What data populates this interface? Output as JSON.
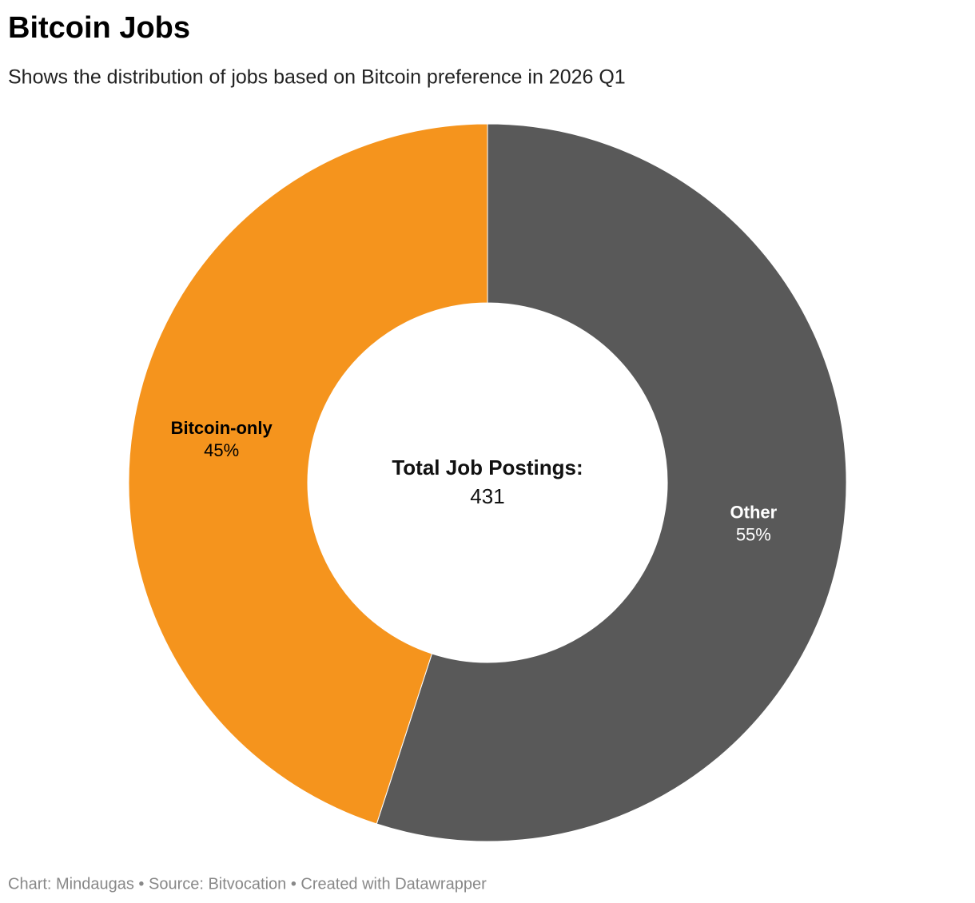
{
  "chart_data": {
    "type": "pie",
    "title": "Bitcoin Jobs",
    "subtitle": "Shows the distribution of jobs based on Bitcoin preference in 2026 Q1",
    "categories": [
      "Other",
      "Bitcoin-only"
    ],
    "values": [
      55,
      45
    ],
    "value_labels": [
      "55%",
      "45%"
    ],
    "colors": [
      "#595959",
      "#f5941d"
    ],
    "center_label": "Total Job Postings:",
    "center_value": 431,
    "footer": "Chart: Mindaugas • Source: Bitvocation • Created with Datawrapper"
  }
}
